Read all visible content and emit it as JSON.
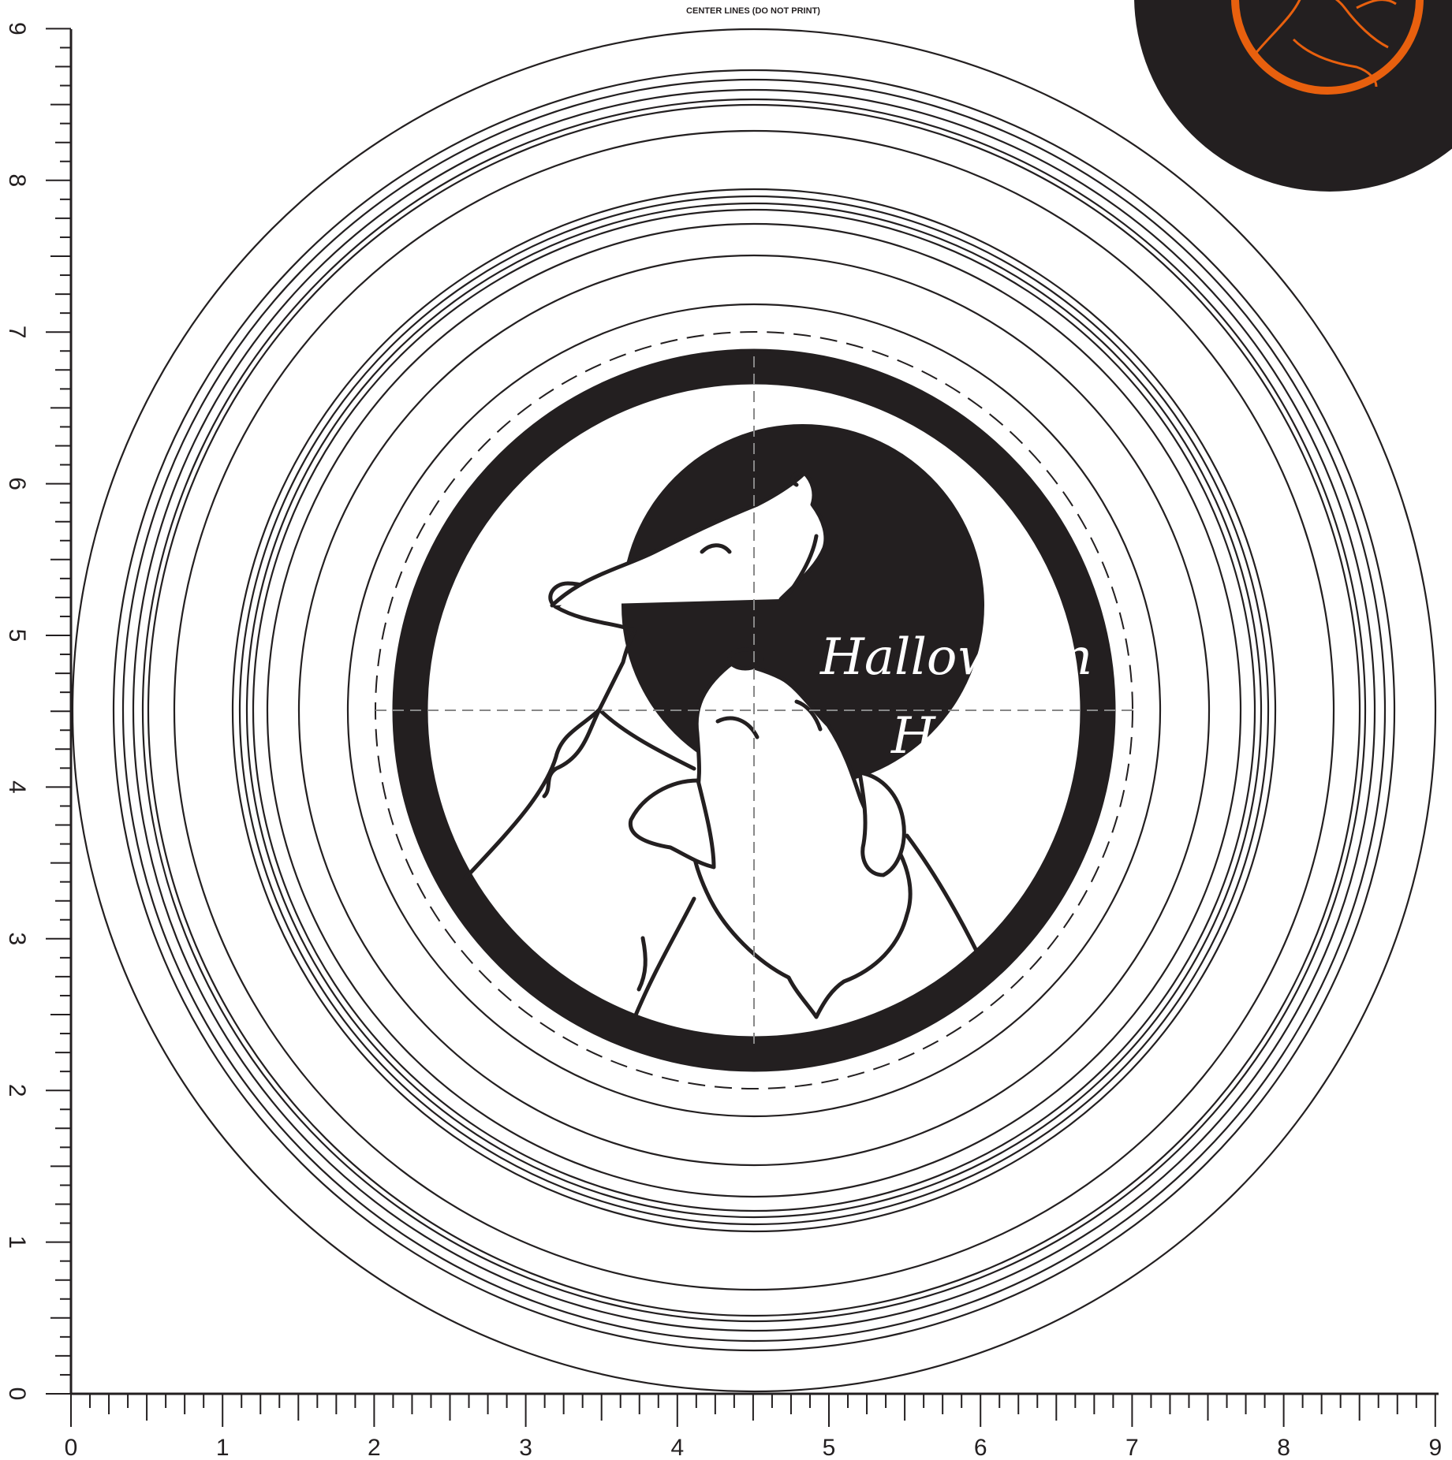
{
  "header": {
    "note": "CENTER LINES  (DO NOT PRINT)"
  },
  "ruler": {
    "x_labels": [
      "0",
      "1",
      "2",
      "3",
      "4",
      "5",
      "6",
      "7",
      "8",
      "9"
    ],
    "y_labels": [
      "0",
      "1",
      "2",
      "3",
      "4",
      "5",
      "6",
      "7",
      "8",
      "9"
    ]
  },
  "artwork": {
    "line1": "Halloween",
    "line2": "Howl"
  },
  "colors": {
    "ink": "#231f20",
    "accent": "#e8600e",
    "paper": "#ffffff",
    "guide": "#888888"
  },
  "icons": {
    "main_art": "howling-wolves-icon",
    "preview": "orange-badge-preview-icon"
  }
}
